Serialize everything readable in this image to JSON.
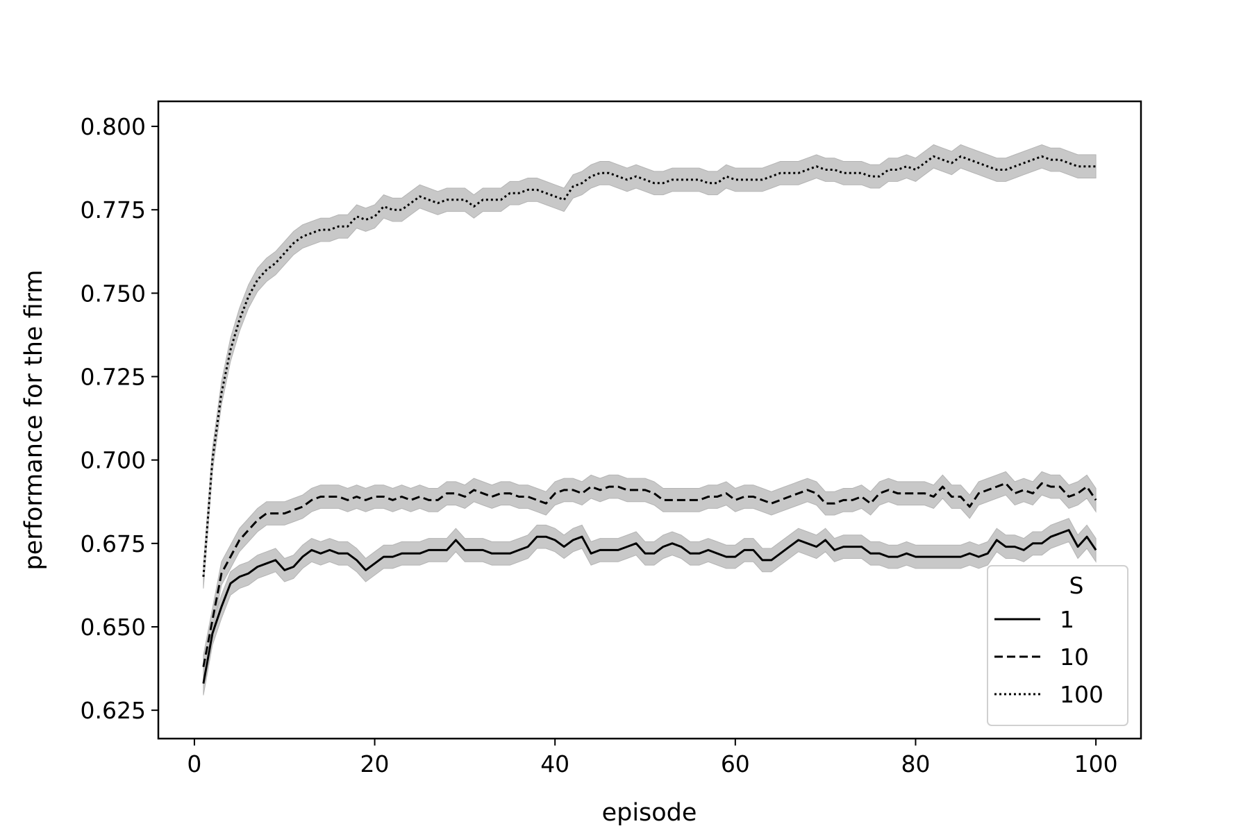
{
  "chart_data": {
    "type": "line",
    "xlabel": "episode",
    "ylabel": "performance for the firm",
    "xlim": [
      -4,
      105
    ],
    "ylim": [
      0.6165,
      0.8075
    ],
    "xticks": [
      0,
      20,
      40,
      60,
      80,
      100
    ],
    "yticks": [
      0.625,
      0.65,
      0.675,
      0.7,
      0.725,
      0.75,
      0.775,
      0.8
    ],
    "ytick_labels": [
      "0.625",
      "0.650",
      "0.675",
      "0.700",
      "0.725",
      "0.750",
      "0.775",
      "0.800"
    ],
    "grid": false,
    "legend": {
      "title": "S",
      "placement": "lower-right"
    },
    "band_color": "#c8c8c8",
    "line_color": "#000000",
    "x": [
      1,
      2,
      3,
      4,
      5,
      6,
      7,
      8,
      9,
      10,
      11,
      12,
      13,
      14,
      15,
      16,
      17,
      18,
      19,
      20,
      21,
      22,
      23,
      24,
      25,
      26,
      27,
      28,
      29,
      30,
      31,
      32,
      33,
      34,
      35,
      36,
      37,
      38,
      39,
      40,
      41,
      42,
      43,
      44,
      45,
      46,
      47,
      48,
      49,
      50,
      51,
      52,
      53,
      54,
      55,
      56,
      57,
      58,
      59,
      60,
      61,
      62,
      63,
      64,
      65,
      66,
      67,
      68,
      69,
      70,
      71,
      72,
      73,
      74,
      75,
      76,
      77,
      78,
      79,
      80,
      81,
      82,
      83,
      84,
      85,
      86,
      87,
      88,
      89,
      90,
      91,
      92,
      93,
      94,
      95,
      96,
      97,
      98,
      99,
      100
    ],
    "series": [
      {
        "name": "1",
        "dash": "solid",
        "band": 0.0035,
        "values": [
          0.633,
          0.648,
          0.656,
          0.663,
          0.665,
          0.666,
          0.668,
          0.669,
          0.67,
          0.667,
          0.668,
          0.671,
          0.673,
          0.672,
          0.673,
          0.672,
          0.672,
          0.67,
          0.667,
          0.669,
          0.671,
          0.671,
          0.672,
          0.672,
          0.672,
          0.673,
          0.673,
          0.673,
          0.676,
          0.673,
          0.673,
          0.673,
          0.672,
          0.672,
          0.672,
          0.673,
          0.674,
          0.677,
          0.677,
          0.676,
          0.674,
          0.676,
          0.677,
          0.672,
          0.673,
          0.673,
          0.673,
          0.674,
          0.675,
          0.672,
          0.672,
          0.674,
          0.675,
          0.674,
          0.672,
          0.672,
          0.673,
          0.672,
          0.671,
          0.671,
          0.673,
          0.673,
          0.67,
          0.67,
          0.672,
          0.674,
          0.676,
          0.675,
          0.674,
          0.676,
          0.673,
          0.674,
          0.674,
          0.674,
          0.672,
          0.672,
          0.671,
          0.671,
          0.672,
          0.671,
          0.671,
          0.671,
          0.671,
          0.671,
          0.671,
          0.672,
          0.671,
          0.672,
          0.676,
          0.674,
          0.674,
          0.673,
          0.675,
          0.675,
          0.677,
          0.678,
          0.679,
          0.674,
          0.677,
          0.673
        ]
      },
      {
        "name": "10",
        "dash": "dashed",
        "band": 0.0035,
        "values": [
          0.638,
          0.652,
          0.666,
          0.671,
          0.676,
          0.679,
          0.682,
          0.684,
          0.684,
          0.684,
          0.685,
          0.686,
          0.688,
          0.689,
          0.689,
          0.689,
          0.688,
          0.689,
          0.688,
          0.689,
          0.689,
          0.688,
          0.689,
          0.688,
          0.689,
          0.688,
          0.688,
          0.69,
          0.69,
          0.689,
          0.691,
          0.69,
          0.689,
          0.69,
          0.69,
          0.689,
          0.689,
          0.688,
          0.687,
          0.69,
          0.691,
          0.691,
          0.69,
          0.692,
          0.691,
          0.692,
          0.692,
          0.691,
          0.691,
          0.691,
          0.69,
          0.688,
          0.688,
          0.688,
          0.688,
          0.688,
          0.689,
          0.689,
          0.69,
          0.688,
          0.689,
          0.689,
          0.688,
          0.687,
          0.688,
          0.689,
          0.69,
          0.691,
          0.69,
          0.687,
          0.687,
          0.688,
          0.688,
          0.689,
          0.687,
          0.69,
          0.691,
          0.69,
          0.69,
          0.69,
          0.69,
          0.689,
          0.692,
          0.689,
          0.689,
          0.686,
          0.69,
          0.691,
          0.692,
          0.693,
          0.69,
          0.691,
          0.69,
          0.693,
          0.692,
          0.692,
          0.689,
          0.69,
          0.692,
          0.688
        ]
      },
      {
        "name": "100",
        "dash": "dotted",
        "band": 0.0035,
        "values": [
          0.665,
          0.7,
          0.72,
          0.733,
          0.742,
          0.749,
          0.754,
          0.757,
          0.759,
          0.762,
          0.765,
          0.767,
          0.768,
          0.769,
          0.769,
          0.77,
          0.77,
          0.773,
          0.772,
          0.773,
          0.776,
          0.775,
          0.775,
          0.777,
          0.779,
          0.778,
          0.777,
          0.778,
          0.778,
          0.778,
          0.776,
          0.778,
          0.778,
          0.778,
          0.78,
          0.78,
          0.781,
          0.781,
          0.78,
          0.779,
          0.778,
          0.782,
          0.783,
          0.785,
          0.786,
          0.786,
          0.785,
          0.784,
          0.785,
          0.784,
          0.783,
          0.783,
          0.784,
          0.784,
          0.784,
          0.784,
          0.783,
          0.783,
          0.785,
          0.784,
          0.784,
          0.784,
          0.784,
          0.785,
          0.786,
          0.786,
          0.786,
          0.787,
          0.788,
          0.787,
          0.787,
          0.786,
          0.786,
          0.786,
          0.785,
          0.785,
          0.787,
          0.787,
          0.788,
          0.787,
          0.789,
          0.791,
          0.79,
          0.789,
          0.791,
          0.79,
          0.789,
          0.788,
          0.787,
          0.787,
          0.788,
          0.789,
          0.79,
          0.791,
          0.79,
          0.79,
          0.789,
          0.788,
          0.788,
          0.788
        ]
      }
    ]
  }
}
